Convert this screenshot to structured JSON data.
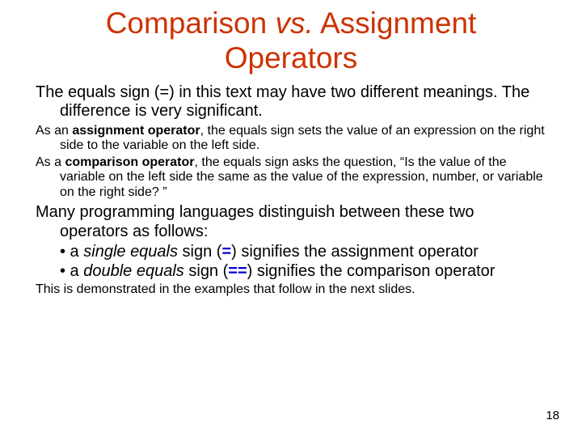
{
  "title": {
    "word1": "Comparison",
    "vs": "vs.",
    "word2": "Assignment",
    "word3": "Operators"
  },
  "para1": "The equals sign (=) in this text may have two different meanings. The difference is very significant.",
  "para2a_pre": "As an ",
  "para2a_bold": "assignment operator",
  "para2a_post": ", the equals sign sets the value of an expression on the right side to the variable on the left side.",
  "para2b_pre": "As a ",
  "para2b_bold": "comparison operator",
  "para2b_post": ", the equals sign asks the question, “Is the value of the variable on the left side the same as the value of the expression, number, or variable on the right side? ”",
  "para3": "Many programming languages distinguish between these two operators as follows:",
  "bullet1_pre": "• a ",
  "bullet1_it": "single equals",
  "bullet1_mid": " sign (",
  "bullet1_sym": "=",
  "bullet1_post": ") signifies the assignment operator",
  "bullet2_pre": "• a ",
  "bullet2_it": "double equals",
  "bullet2_mid": " sign (",
  "bullet2_sym": "==",
  "bullet2_post": ") signifies the comparison operator",
  "para4": "This is demonstrated in the examples that follow in the next slides.",
  "pagenum": "18",
  "colors": {
    "title": "#cc3300",
    "blue": "#0000cc",
    "text": "#000000",
    "bg": "#ffffff"
  }
}
